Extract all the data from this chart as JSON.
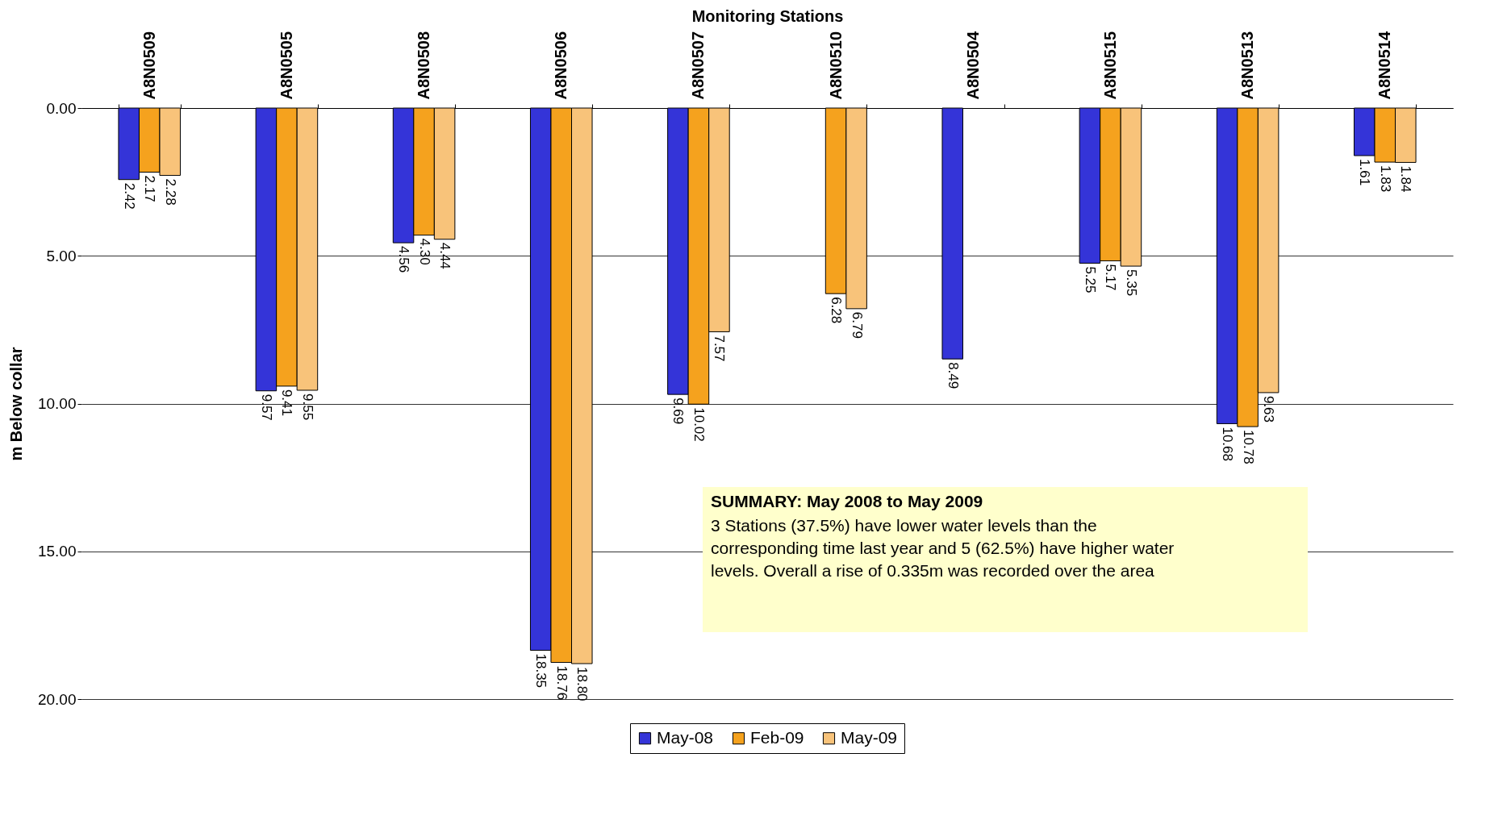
{
  "chart_data": {
    "type": "bar",
    "xlabel": "Monitoring Stations",
    "ylabel": "m Below collar",
    "categories": [
      "A8N0509",
      "A8N0505",
      "A8N0508",
      "A8N0506",
      "A8N0507",
      "A8N0510",
      "A8N0504",
      "A8N0515",
      "A8N0513",
      "A8N0514"
    ],
    "series": [
      {
        "name": "May-08",
        "color": "#3434d8",
        "values": [
          2.42,
          9.57,
          4.56,
          18.35,
          9.69,
          null,
          8.49,
          5.25,
          10.68,
          1.61
        ],
        "value_labels": [
          "2.42",
          "9.57",
          "4.56",
          "18.35",
          "9.69",
          null,
          "8.49",
          "5.25",
          "10.68",
          "1.61"
        ]
      },
      {
        "name": "Feb-09",
        "color": "#f5a21e",
        "values": [
          2.17,
          9.41,
          4.3,
          18.76,
          10.02,
          6.28,
          null,
          5.17,
          10.78,
          1.83
        ],
        "value_labels": [
          "2.17",
          "9.41",
          "4.30",
          "18.76",
          "10.02",
          "6.28",
          null,
          "5.17",
          "10.78",
          "1.83"
        ]
      },
      {
        "name": "May-09",
        "color": "#f8c37a",
        "values": [
          2.28,
          9.55,
          4.44,
          18.8,
          7.57,
          6.79,
          null,
          5.35,
          9.63,
          1.84
        ],
        "value_labels": [
          "2.28",
          "9.55",
          "4.44",
          "18.80",
          "7.57",
          "6.79",
          null,
          "5.35",
          "9.63",
          "1.84"
        ]
      }
    ],
    "ylim": [
      20,
      0
    ],
    "yticks": [
      {
        "value": 0,
        "label": "0.00"
      },
      {
        "value": 5,
        "label": "5.00"
      },
      {
        "value": 10,
        "label": "10.00"
      },
      {
        "value": 15,
        "label": "15.00"
      },
      {
        "value": 20,
        "label": "20.00"
      }
    ],
    "grid": "y",
    "legend": "bottom",
    "annotations": [
      "SUMMARY: May 2008 to May 2009",
      "3 Stations  (37.5%) have lower water  levels than the corresponding time last year and 5  (62.5%) have  higher water levels. Overall a rise of 0.335m was recorded over the area"
    ]
  }
}
